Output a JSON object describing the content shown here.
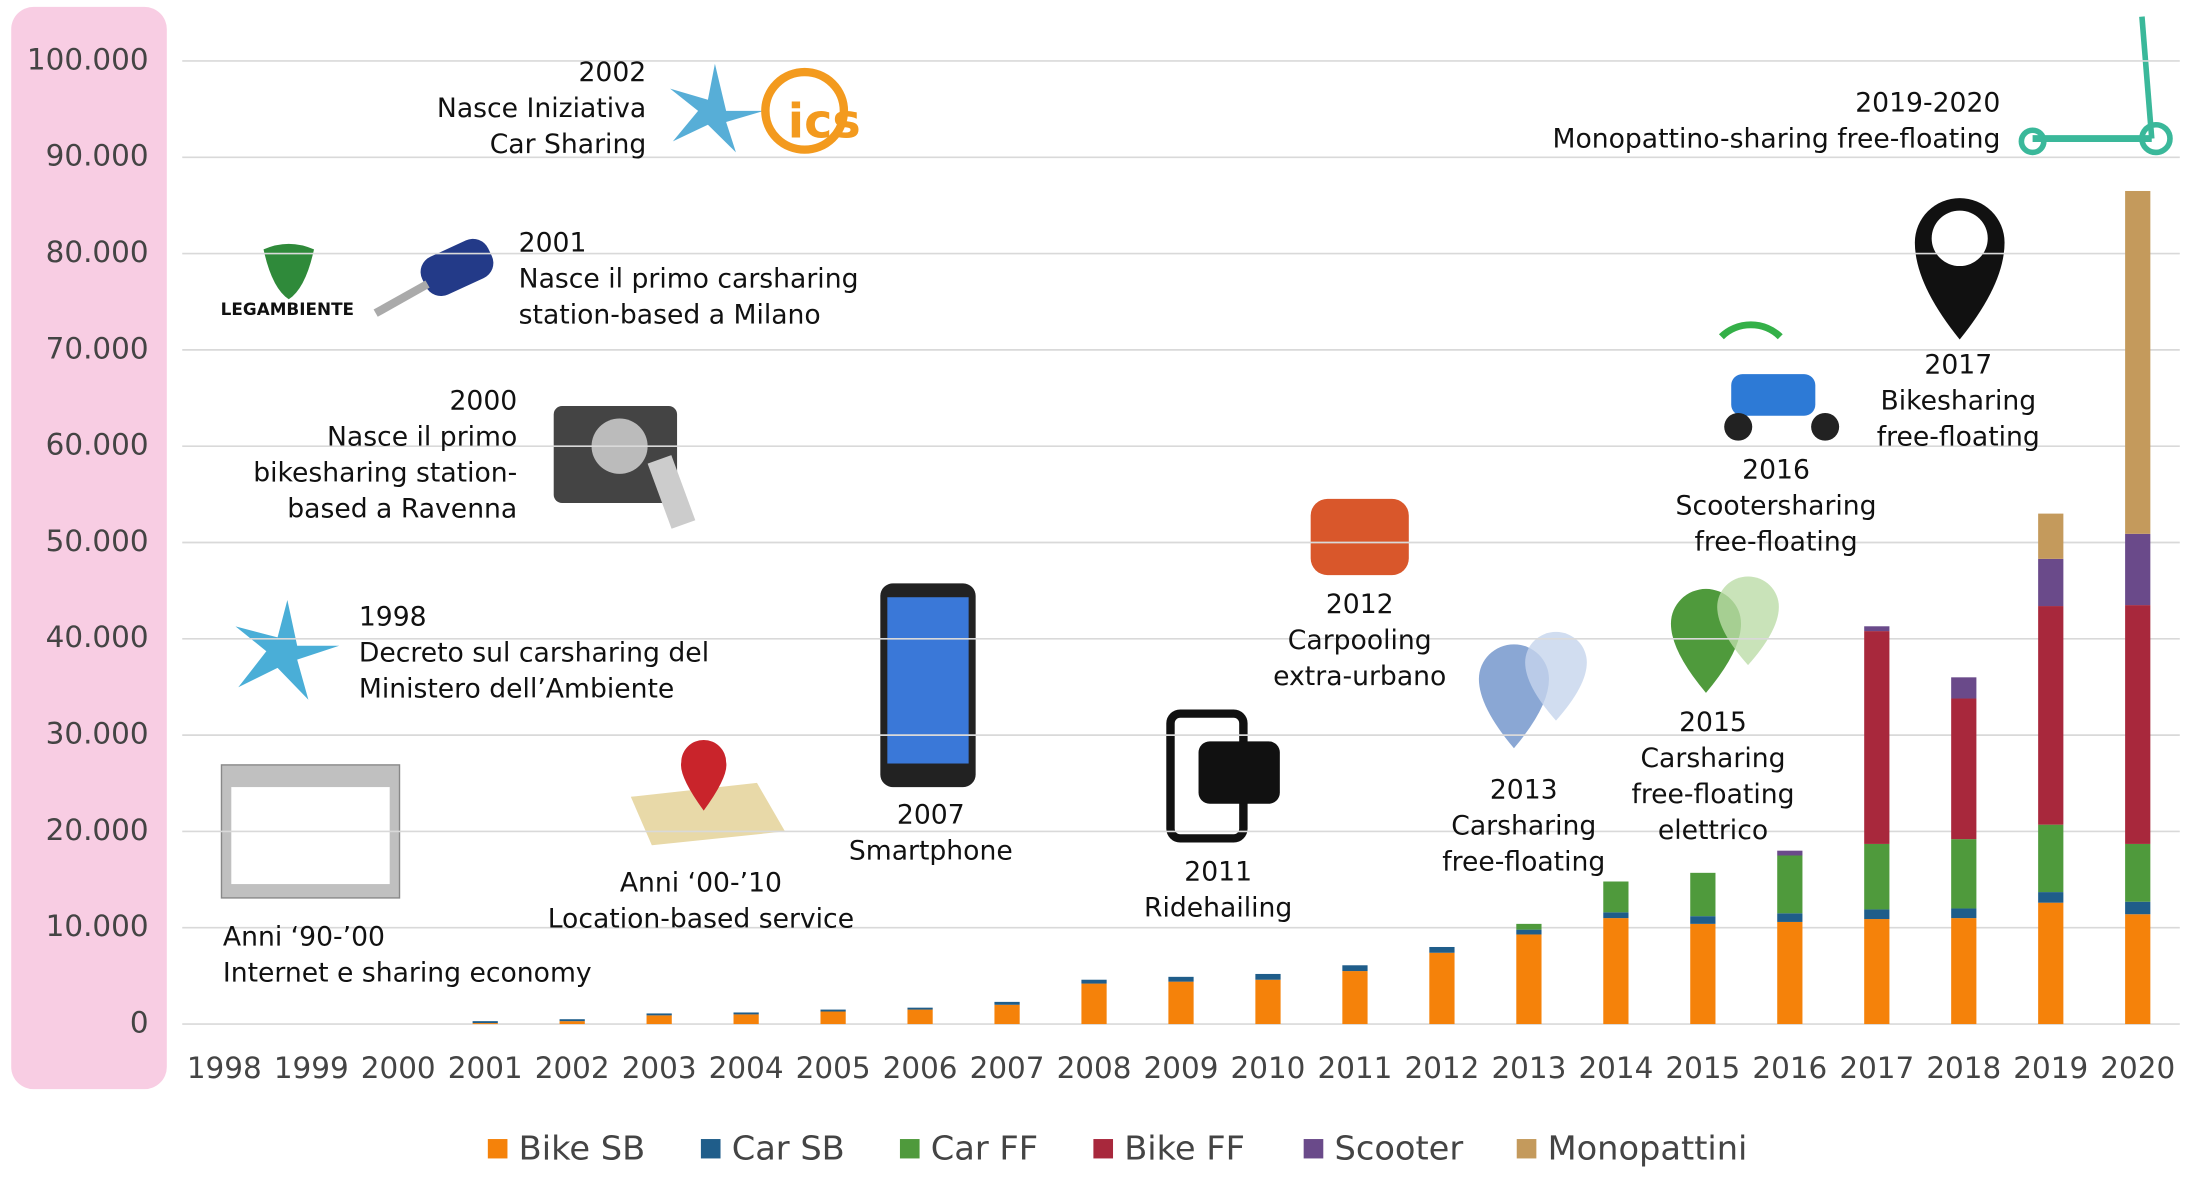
{
  "chart_data": {
    "type": "stacked-bar",
    "categories": [
      "1998",
      "1999",
      "2000",
      "2001",
      "2002",
      "2003",
      "2004",
      "2005",
      "2006",
      "2007",
      "2008",
      "2009",
      "2010",
      "2011",
      "2012",
      "2013",
      "2014",
      "2015",
      "2016",
      "2017",
      "2018",
      "2019",
      "2020"
    ],
    "series": [
      {
        "name": "Bike SB",
        "color": "#f5820a",
        "values": [
          0,
          0,
          0,
          100,
          300,
          900,
          1000,
          1300,
          1500,
          2000,
          4200,
          4400,
          4600,
          5500,
          7400,
          9300,
          11000,
          10400,
          10600,
          10900,
          11000,
          12600,
          11400
        ]
      },
      {
        "name": "Car SB",
        "color": "#1f5d8a",
        "values": [
          0,
          0,
          0,
          200,
          200,
          200,
          200,
          200,
          200,
          300,
          400,
          500,
          600,
          600,
          600,
          500,
          600,
          800,
          900,
          1000,
          1000,
          1100,
          1300
        ]
      },
      {
        "name": "Car FF",
        "color": "#4f9a3c",
        "values": [
          0,
          0,
          0,
          0,
          0,
          0,
          0,
          0,
          0,
          0,
          0,
          0,
          0,
          0,
          0,
          600,
          3200,
          4500,
          6000,
          6800,
          7200,
          7000,
          6000
        ]
      },
      {
        "name": "Bike FF",
        "color": "#a8283c",
        "values": [
          0,
          0,
          0,
          0,
          0,
          0,
          0,
          0,
          0,
          0,
          0,
          0,
          0,
          0,
          0,
          0,
          0,
          0,
          0,
          22100,
          14600,
          22700,
          24800
        ]
      },
      {
        "name": "Scooter",
        "color": "#6a4a8a",
        "values": [
          0,
          0,
          0,
          0,
          0,
          0,
          0,
          0,
          0,
          0,
          0,
          0,
          0,
          0,
          0,
          0,
          0,
          0,
          500,
          500,
          2200,
          4900,
          7400
        ]
      },
      {
        "name": "Monopattini",
        "color": "#c49a5c",
        "values": [
          0,
          0,
          0,
          0,
          0,
          0,
          0,
          0,
          0,
          0,
          0,
          0,
          0,
          0,
          0,
          0,
          0,
          0,
          0,
          0,
          0,
          4700,
          35600
        ]
      }
    ],
    "ylim": [
      0,
      100000
    ],
    "yticks": [
      0,
      {
        "value": 10000,
        "label": "10.000"
      },
      {
        "value": 20000,
        "label": "20.000"
      },
      {
        "value": 30000,
        "label": "30.000"
      },
      {
        "value": 40000,
        "label": "40.000"
      },
      {
        "value": 50000,
        "label": "50.000"
      },
      {
        "value": 60000,
        "label": "60.000"
      },
      {
        "value": 70000,
        "label": "70.000"
      },
      {
        "value": 80000,
        "label": "80.000"
      },
      {
        "value": 90000,
        "label": "90.000"
      },
      {
        "value": 100000,
        "label": "100.000"
      }
    ],
    "grid": true,
    "legend": "bottom",
    "annotations": [
      {
        "lines": [
          "2002",
          "Nasce Iniziativa",
          "Car Sharing"
        ]
      },
      {
        "lines": [
          "2001",
          "Nasce il primo carsharing",
          "station-based a Milano"
        ]
      },
      {
        "lines": [
          "2000",
          "Nasce il primo",
          "bikesharing station-",
          "based a Ravenna"
        ]
      },
      {
        "lines": [
          "1998",
          "Decreto sul carsharing del",
          "Ministero dell’Ambiente"
        ]
      },
      {
        "lines": [
          "Anni ‘90-’00",
          "Internet e sharing economy"
        ]
      },
      {
        "lines": [
          "Anni ‘00-’10",
          "Location-based service"
        ]
      },
      {
        "lines": [
          "2007",
          "Smartphone"
        ]
      },
      {
        "lines": [
          "2011",
          "Ridehailing"
        ]
      },
      {
        "lines": [
          "2012",
          "Carpooling",
          "extra-urbano"
        ]
      },
      {
        "lines": [
          "2013",
          "Carsharing",
          "free-floating"
        ]
      },
      {
        "lines": [
          "2015",
          "Carsharing",
          "free-floating",
          "elettrico"
        ]
      },
      {
        "lines": [
          "2016",
          "Scootersharing",
          "free-floating"
        ]
      },
      {
        "lines": [
          "2017",
          "Bikesharing",
          "free-floating"
        ]
      },
      {
        "lines": [
          "2019-2020",
          "Monopattino-sharing free-floating"
        ]
      }
    ],
    "logos": [
      "LEGAMBIENTE",
      "ics"
    ]
  }
}
